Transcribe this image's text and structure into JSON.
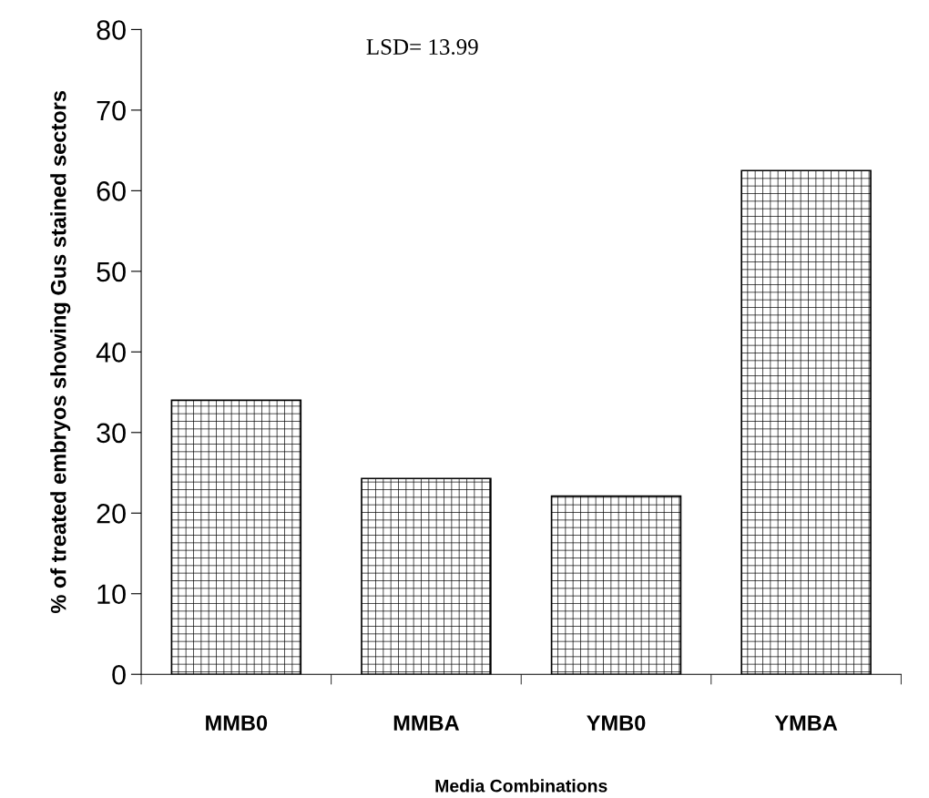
{
  "chart_data": {
    "type": "bar",
    "xlabel": "Media Combinations",
    "ylabel": "% of treated embryos showing Gus stained sectors",
    "categories": [
      "MMB0",
      "MMBA",
      "YMB0",
      "YMBA"
    ],
    "values": [
      34,
      24.3,
      22.1,
      62.5
    ],
    "color": "#000000",
    "ylim": [
      0,
      80
    ],
    "yticks": [
      0,
      10,
      20,
      30,
      40,
      50,
      60,
      70,
      80
    ],
    "annotations": [
      "LSD= 13.99"
    ],
    "grid": false
  }
}
